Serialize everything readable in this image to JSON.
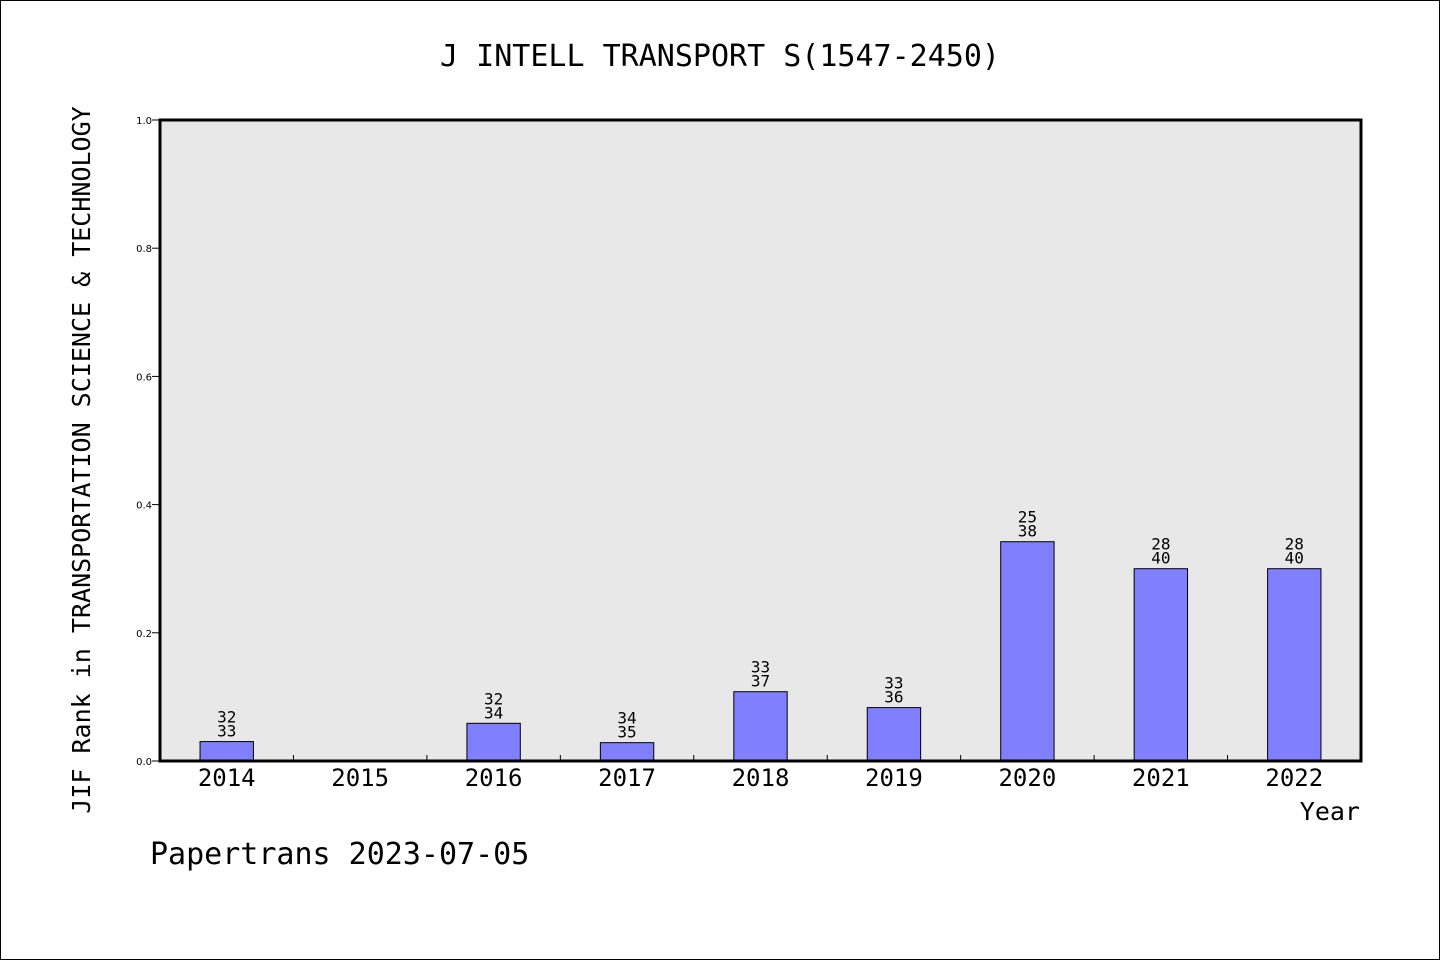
{
  "chart_data": {
    "type": "bar",
    "title": "J INTELL TRANSPORT S(1547-2450)",
    "ylabel": "JIF Rank in TRANSPORTATION SCIENCE & TECHNOLOGY",
    "xlabel": "Year",
    "categories": [
      "2014",
      "2015",
      "2016",
      "2017",
      "2018",
      "2019",
      "2020",
      "2021",
      "2022"
    ],
    "values": [
      0.0303,
      null,
      0.0588,
      0.0286,
      0.1081,
      0.0833,
      0.3421,
      0.3,
      0.3
    ],
    "labels": [
      [
        "32",
        "33"
      ],
      null,
      [
        "32",
        "34"
      ],
      [
        "34",
        "35"
      ],
      [
        "33",
        "37"
      ],
      [
        "33",
        "36"
      ],
      [
        "25",
        "38"
      ],
      [
        "28",
        "40"
      ],
      [
        "28",
        "40"
      ]
    ],
    "ylim": [
      0,
      1.0
    ],
    "yticks": [
      "0.0",
      "0.2",
      "0.4",
      "0.6",
      "0.8",
      "1.0"
    ],
    "grid": false,
    "legend": "none",
    "bar_color": "#8080ff",
    "plot_background": "#e8e8e8"
  },
  "footer": "Papertrans 2023-07-05"
}
